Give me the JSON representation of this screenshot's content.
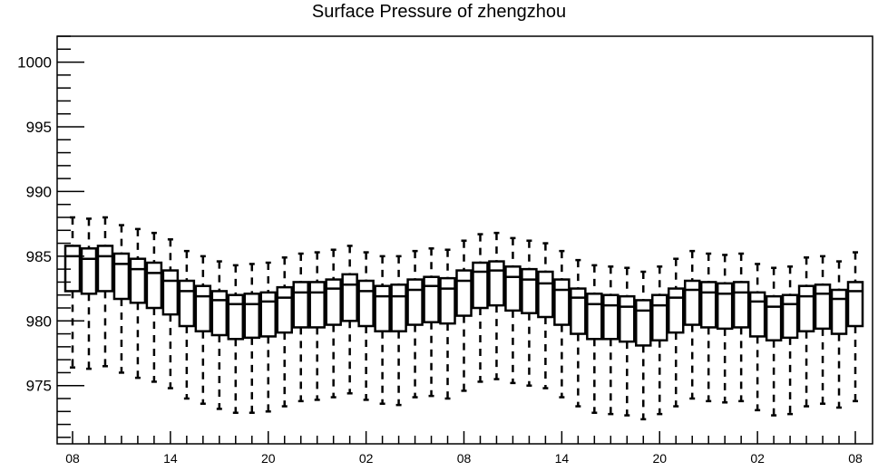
{
  "chart_data": {
    "type": "box",
    "title": "Surface Pressure of zhengzhou",
    "xlabel": "",
    "ylabel": "",
    "ylim": [
      970.5,
      1002
    ],
    "yticks": [
      975,
      980,
      985,
      990,
      995,
      1000
    ],
    "y_minor_step": 1,
    "xtick_labels": [
      "08",
      "14",
      "20",
      "02",
      "08",
      "14",
      "20",
      "02",
      "08"
    ],
    "xtick_positions": [
      0,
      6,
      12,
      18,
      24,
      30,
      36,
      42,
      48
    ],
    "grid": false,
    "legend": "none",
    "whisker_style": "dashed",
    "colors": {
      "stroke": "#000000",
      "background": "#ffffff"
    },
    "boxes": [
      {
        "x": 0,
        "low": 976.4,
        "q1": 982.3,
        "median": 985.0,
        "q3": 985.8,
        "high": 988.0
      },
      {
        "x": 1,
        "low": 976.3,
        "q1": 982.1,
        "median": 984.8,
        "q3": 985.6,
        "high": 987.9
      },
      {
        "x": 2,
        "low": 976.5,
        "q1": 982.3,
        "median": 985.0,
        "q3": 985.8,
        "high": 988.0
      },
      {
        "x": 3,
        "low": 976.0,
        "q1": 981.7,
        "median": 984.4,
        "q3": 985.2,
        "high": 987.4
      },
      {
        "x": 4,
        "low": 975.6,
        "q1": 981.4,
        "median": 984.0,
        "q3": 984.8,
        "high": 987.1
      },
      {
        "x": 5,
        "low": 975.3,
        "q1": 981.0,
        "median": 983.7,
        "q3": 984.5,
        "high": 986.8
      },
      {
        "x": 6,
        "low": 974.8,
        "q1": 980.5,
        "median": 983.1,
        "q3": 983.9,
        "high": 986.3
      },
      {
        "x": 7,
        "low": 974.0,
        "q1": 979.6,
        "median": 982.3,
        "q3": 983.1,
        "high": 985.4
      },
      {
        "x": 8,
        "low": 973.6,
        "q1": 979.2,
        "median": 981.9,
        "q3": 982.7,
        "high": 985.0
      },
      {
        "x": 9,
        "low": 973.2,
        "q1": 978.9,
        "median": 981.6,
        "q3": 982.3,
        "high": 984.6
      },
      {
        "x": 10,
        "low": 972.9,
        "q1": 978.6,
        "median": 981.3,
        "q3": 982.0,
        "high": 984.3
      },
      {
        "x": 11,
        "low": 972.9,
        "q1": 978.7,
        "median": 981.3,
        "q3": 982.1,
        "high": 984.4
      },
      {
        "x": 12,
        "low": 973.0,
        "q1": 978.8,
        "median": 981.5,
        "q3": 982.2,
        "high": 984.5
      },
      {
        "x": 13,
        "low": 973.4,
        "q1": 979.1,
        "median": 981.8,
        "q3": 982.6,
        "high": 984.9
      },
      {
        "x": 14,
        "low": 973.8,
        "q1": 979.5,
        "median": 982.2,
        "q3": 983.0,
        "high": 985.2
      },
      {
        "x": 15,
        "low": 973.9,
        "q1": 979.5,
        "median": 982.2,
        "q3": 983.0,
        "high": 985.3
      },
      {
        "x": 16,
        "low": 974.1,
        "q1": 979.7,
        "median": 982.5,
        "q3": 983.2,
        "high": 985.5
      },
      {
        "x": 17,
        "low": 974.4,
        "q1": 980.0,
        "median": 982.8,
        "q3": 983.6,
        "high": 985.8
      },
      {
        "x": 18,
        "low": 973.9,
        "q1": 979.6,
        "median": 982.3,
        "q3": 983.1,
        "high": 985.3
      },
      {
        "x": 19,
        "low": 973.6,
        "q1": 979.2,
        "median": 981.9,
        "q3": 982.7,
        "high": 985.0
      },
      {
        "x": 20,
        "low": 973.5,
        "q1": 979.2,
        "median": 981.9,
        "q3": 982.8,
        "high": 985.0
      },
      {
        "x": 21,
        "low": 974.1,
        "q1": 979.7,
        "median": 982.4,
        "q3": 983.2,
        "high": 985.4
      },
      {
        "x": 22,
        "low": 974.2,
        "q1": 979.9,
        "median": 982.7,
        "q3": 983.4,
        "high": 985.6
      },
      {
        "x": 23,
        "low": 974.0,
        "q1": 979.8,
        "median": 982.5,
        "q3": 983.3,
        "high": 985.5
      },
      {
        "x": 24,
        "low": 974.6,
        "q1": 980.4,
        "median": 983.1,
        "q3": 983.9,
        "high": 986.2
      },
      {
        "x": 25,
        "low": 975.3,
        "q1": 981.0,
        "median": 983.8,
        "q3": 984.5,
        "high": 986.7
      },
      {
        "x": 26,
        "low": 975.5,
        "q1": 981.2,
        "median": 983.9,
        "q3": 984.6,
        "high": 986.8
      },
      {
        "x": 27,
        "low": 975.2,
        "q1": 980.8,
        "median": 983.4,
        "q3": 984.2,
        "high": 986.4
      },
      {
        "x": 28,
        "low": 975.0,
        "q1": 980.6,
        "median": 983.2,
        "q3": 984.0,
        "high": 986.2
      },
      {
        "x": 29,
        "low": 974.8,
        "q1": 980.3,
        "median": 982.9,
        "q3": 983.8,
        "high": 986.0
      },
      {
        "x": 30,
        "low": 974.1,
        "q1": 979.7,
        "median": 982.4,
        "q3": 983.2,
        "high": 985.4
      },
      {
        "x": 31,
        "low": 973.4,
        "q1": 979.0,
        "median": 981.8,
        "q3": 982.5,
        "high": 984.7
      },
      {
        "x": 32,
        "low": 972.9,
        "q1": 978.6,
        "median": 981.3,
        "q3": 982.1,
        "high": 984.3
      },
      {
        "x": 33,
        "low": 972.8,
        "q1": 978.6,
        "median": 981.2,
        "q3": 982.0,
        "high": 984.2
      },
      {
        "x": 34,
        "low": 972.7,
        "q1": 978.4,
        "median": 981.1,
        "q3": 981.9,
        "high": 984.1
      },
      {
        "x": 35,
        "low": 972.4,
        "q1": 978.1,
        "median": 980.8,
        "q3": 981.6,
        "high": 983.8
      },
      {
        "x": 36,
        "low": 972.8,
        "q1": 978.5,
        "median": 981.2,
        "q3": 982.0,
        "high": 984.2
      },
      {
        "x": 37,
        "low": 973.4,
        "q1": 979.1,
        "median": 981.8,
        "q3": 982.5,
        "high": 984.8
      },
      {
        "x": 38,
        "low": 974.0,
        "q1": 979.7,
        "median": 982.4,
        "q3": 983.1,
        "high": 985.4
      },
      {
        "x": 39,
        "low": 973.8,
        "q1": 979.5,
        "median": 982.2,
        "q3": 983.0,
        "high": 985.2
      },
      {
        "x": 40,
        "low": 973.7,
        "q1": 979.4,
        "median": 982.1,
        "q3": 982.9,
        "high": 985.1
      },
      {
        "x": 41,
        "low": 973.8,
        "q1": 979.5,
        "median": 982.2,
        "q3": 983.0,
        "high": 985.2
      },
      {
        "x": 42,
        "low": 973.1,
        "q1": 978.8,
        "median": 981.5,
        "q3": 982.2,
        "high": 984.4
      },
      {
        "x": 43,
        "low": 972.7,
        "q1": 978.5,
        "median": 981.1,
        "q3": 981.9,
        "high": 984.1
      },
      {
        "x": 44,
        "low": 972.8,
        "q1": 978.7,
        "median": 981.3,
        "q3": 982.0,
        "high": 984.2
      },
      {
        "x": 45,
        "low": 973.4,
        "q1": 979.2,
        "median": 981.9,
        "q3": 982.7,
        "high": 984.9
      },
      {
        "x": 46,
        "low": 973.6,
        "q1": 979.4,
        "median": 982.1,
        "q3": 982.8,
        "high": 985.0
      },
      {
        "x": 47,
        "low": 973.3,
        "q1": 979.0,
        "median": 981.7,
        "q3": 982.4,
        "high": 984.6
      },
      {
        "x": 48,
        "low": 973.8,
        "q1": 979.6,
        "median": 982.3,
        "q3": 983.0,
        "high": 985.3
      }
    ]
  }
}
